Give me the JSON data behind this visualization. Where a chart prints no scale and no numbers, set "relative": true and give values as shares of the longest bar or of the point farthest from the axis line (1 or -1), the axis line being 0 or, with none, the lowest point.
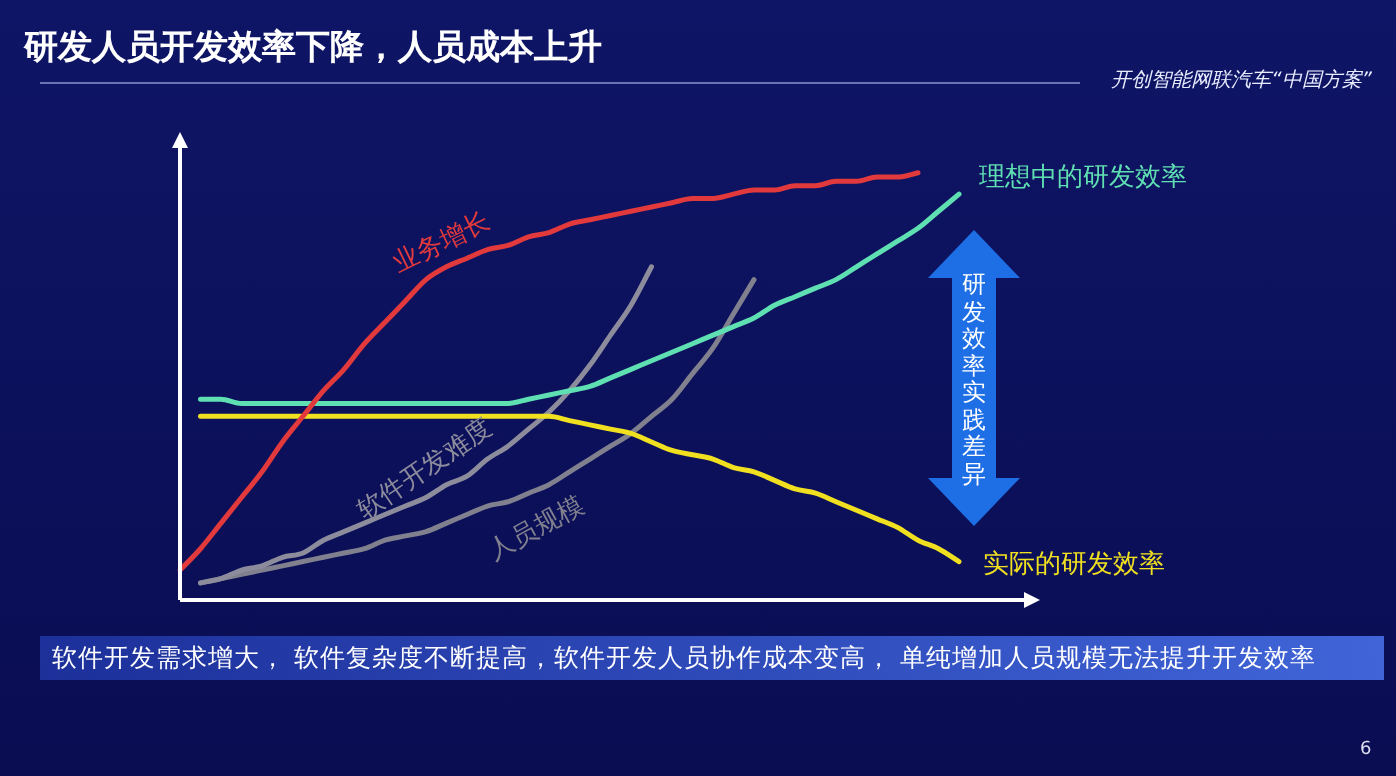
{
  "chart_data": {
    "type": "line",
    "title": "研发人员开发效率下降，人员成本上升",
    "relative": true,
    "legend": false,
    "marker": "none",
    "line_style": "solid",
    "categories": [
      null,
      null,
      null,
      null,
      null,
      null,
      null,
      null,
      null,
      null,
      null,
      null,
      null,
      null,
      null,
      null,
      null,
      null,
      null,
      null,
      null,
      null,
      null,
      null,
      null,
      null,
      null,
      null,
      null,
      null,
      null,
      null,
      null,
      null,
      null,
      null,
      null,
      null,
      null,
      null,
      null
    ],
    "series": [
      {
        "name": "业务增长",
        "color": "#e23a3c",
        "values": [
          0.07,
          0.12,
          0.18,
          0.24,
          0.3,
          0.37,
          0.43,
          0.49,
          0.54,
          0.6,
          0.65,
          0.7,
          0.75,
          0.78,
          0.8,
          0.82,
          0.83,
          0.85,
          0.86,
          0.88,
          0.89,
          0.9,
          0.91,
          0.92,
          0.93,
          0.94,
          0.94,
          0.95,
          0.96,
          0.96,
          0.97,
          0.97,
          0.98,
          0.98,
          0.99,
          0.99,
          1.0,
          null,
          null,
          null,
          null
        ]
      },
      {
        "name": "理想中的研发效率",
        "color": "#5fe0b2",
        "values": [
          null,
          0.47,
          0.47,
          0.46,
          0.46,
          0.46,
          0.46,
          0.46,
          0.46,
          0.46,
          0.46,
          0.46,
          0.46,
          0.46,
          0.46,
          0.46,
          0.46,
          0.47,
          0.48,
          0.49,
          0.5,
          0.52,
          0.54,
          0.56,
          0.58,
          0.6,
          0.62,
          0.64,
          0.66,
          0.69,
          0.71,
          0.73,
          0.75,
          0.78,
          0.81,
          0.84,
          0.87,
          0.91,
          0.95,
          null,
          null
        ]
      },
      {
        "name": "实际的研发效率",
        "color": "#f0e020",
        "values": [
          null,
          0.43,
          0.43,
          0.43,
          0.43,
          0.43,
          0.43,
          0.43,
          0.43,
          0.43,
          0.43,
          0.43,
          0.43,
          0.43,
          0.43,
          0.43,
          0.43,
          0.43,
          0.43,
          0.42,
          0.41,
          0.4,
          0.39,
          0.37,
          0.35,
          0.34,
          0.33,
          0.31,
          0.3,
          0.28,
          0.26,
          0.25,
          0.23,
          0.21,
          0.19,
          0.17,
          0.14,
          0.12,
          0.09,
          null,
          null
        ]
      },
      {
        "name": "软件开发难度",
        "color": "#8c8c9c",
        "values": [
          null,
          0.04,
          0.05,
          0.07,
          0.08,
          0.1,
          0.11,
          0.14,
          0.16,
          0.18,
          0.2,
          0.22,
          0.24,
          0.27,
          0.29,
          0.33,
          0.36,
          0.4,
          0.44,
          0.49,
          0.55,
          0.62,
          0.69,
          0.78,
          null,
          null,
          null,
          null,
          null,
          null,
          null,
          null,
          null,
          null,
          null,
          null,
          null,
          null,
          null,
          null,
          null
        ]
      },
      {
        "name": "人员规模",
        "color": "#80808e",
        "values": [
          null,
          0.04,
          0.05,
          0.06,
          0.07,
          0.08,
          0.09,
          0.1,
          0.11,
          0.12,
          0.14,
          0.15,
          0.16,
          0.18,
          0.2,
          0.22,
          0.23,
          0.25,
          0.27,
          0.3,
          0.33,
          0.36,
          0.39,
          0.43,
          0.47,
          0.53,
          0.59,
          0.67,
          0.75,
          null,
          null,
          null,
          null,
          null,
          null,
          null,
          null,
          null,
          null,
          null,
          null
        ]
      }
    ],
    "annotations": [
      "开创智能网联汽车“中国方案”",
      "研发效率实践差异",
      "软件开发需求增大， 软件复杂度不断提高，软件开发人员协作成本变高， 单纯增加人员规模无法提升开发效率",
      "6"
    ]
  }
}
